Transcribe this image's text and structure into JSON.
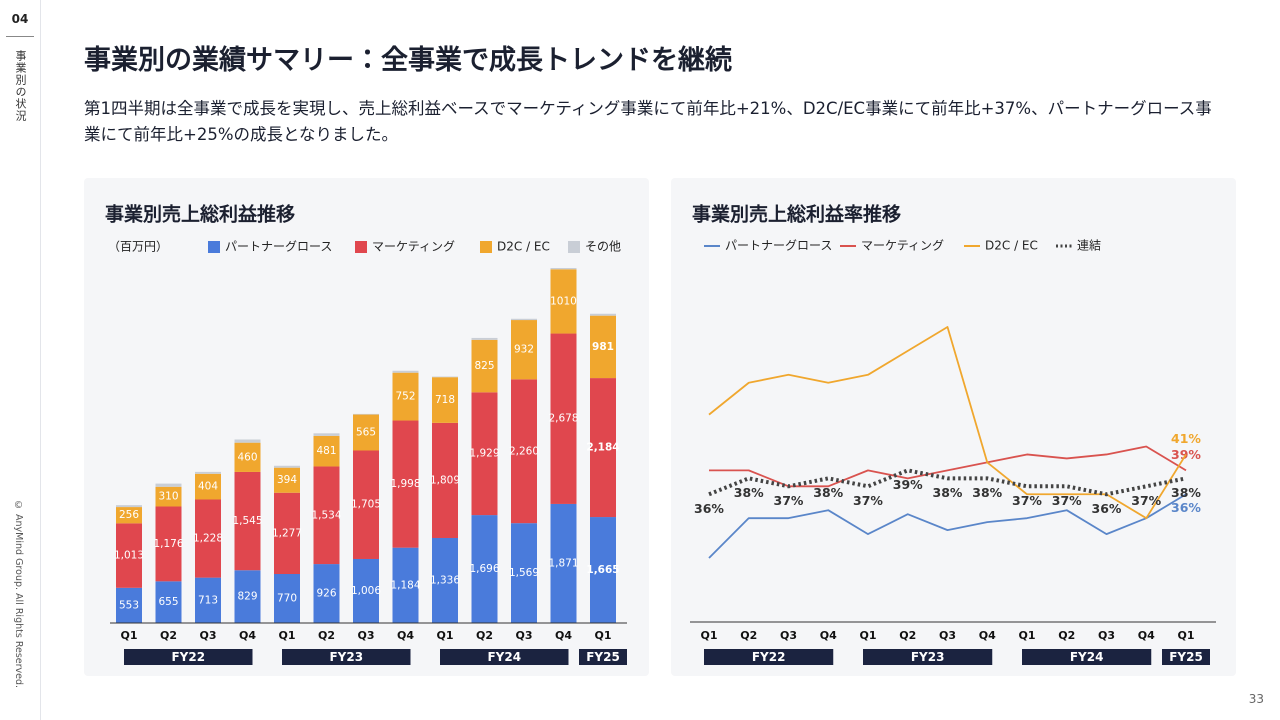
{
  "sidebar": {
    "section_number": "04",
    "section_title": "事業別の状況",
    "copyright": "© AnyMind Group. All Rights Reserved."
  },
  "header": {
    "title": "事業別の業績サマリー：全事業で成長トレンドを継続",
    "description": "第1四半期は全事業で成長を実現し、売上総利益ベースでマーケティング事業にて前年比+21%、D2C/EC事業にて前年比+37%、パートナーグロース事業にて前年比+25%の成長となりました。"
  },
  "page_number": 33,
  "chart_data": [
    {
      "type": "stacked_bar",
      "title": "事業別売上総利益推移",
      "unit_label": "（百万円）",
      "categories": [
        "Q1",
        "Q2",
        "Q3",
        "Q4",
        "Q1",
        "Q2",
        "Q3",
        "Q4",
        "Q1",
        "Q2",
        "Q3",
        "Q4",
        "Q1"
      ],
      "groups": [
        "FY22",
        "FY23",
        "FY24",
        "FY25"
      ],
      "series": [
        {
          "name": "パートナーグロース",
          "color": "#4a7bdb",
          "values": [
            553,
            655,
            713,
            829,
            770,
            926,
            1006,
            1184,
            1336,
            1696,
            1569,
            1871,
            1665
          ],
          "value_labels": [
            "553",
            "655",
            "713",
            "829",
            "770",
            "926",
            "1,006",
            "1,184",
            "1,336",
            "1,696",
            "1,569",
            "1,871",
            "1,665"
          ]
        },
        {
          "name": "マーケティング",
          "color": "#e0474e",
          "values": [
            1013,
            1176,
            1228,
            1545,
            1277,
            1534,
            1705,
            1998,
            1809,
            1929,
            2260,
            2678,
            2184
          ],
          "value_labels": [
            "1,013",
            "1,176",
            "1,228",
            "1,545",
            "1,277",
            "1,534",
            "1,705",
            "1,998",
            "1,809",
            "1,929",
            "2,260",
            "2,678",
            "2,184"
          ]
        },
        {
          "name": "D2C / EC",
          "color": "#f0a72e",
          "values": [
            256,
            310,
            404,
            460,
            394,
            481,
            565,
            752,
            718,
            825,
            932,
            1010,
            981
          ],
          "value_labels": [
            "256",
            "310",
            "404",
            "460",
            "394",
            "481",
            "565",
            "752",
            "718",
            "825",
            "932",
            "1010",
            "981"
          ]
        },
        {
          "name": "その他",
          "color": "#c9ced6",
          "values": [
            30,
            50,
            30,
            50,
            30,
            40,
            10,
            30,
            10,
            30,
            20,
            20,
            30
          ]
        }
      ]
    },
    {
      "type": "line",
      "title": "事業別売上総利益率推移",
      "categories": [
        "Q1",
        "Q2",
        "Q3",
        "Q4",
        "Q1",
        "Q2",
        "Q3",
        "Q4",
        "Q1",
        "Q2",
        "Q3",
        "Q4",
        "Q1"
      ],
      "groups": [
        "FY22",
        "FY23",
        "FY24",
        "FY25"
      ],
      "series": [
        {
          "name": "パートナーグロース",
          "color": "#5a86c9",
          "style": "solid",
          "values": [
            28,
            33,
            33,
            34,
            31,
            33.5,
            31.5,
            32.5,
            33,
            34,
            31,
            33,
            36
          ],
          "value_labels": [
            null,
            null,
            null,
            null,
            null,
            null,
            null,
            null,
            null,
            null,
            null,
            null,
            "36%"
          ]
        },
        {
          "name": "マーケティング",
          "color": "#d9534f",
          "style": "solid",
          "values": [
            39,
            39,
            37,
            37,
            39,
            38,
            39,
            40,
            41,
            40.5,
            41,
            42,
            39
          ],
          "value_labels": [
            null,
            null,
            null,
            null,
            null,
            null,
            null,
            null,
            null,
            null,
            null,
            null,
            "39%"
          ]
        },
        {
          "name": "D2C / EC",
          "color": "#f0a72e",
          "style": "solid",
          "values": [
            46,
            50,
            51,
            50,
            51,
            54,
            57,
            40,
            36,
            36,
            36,
            33,
            41
          ],
          "value_labels": [
            null,
            null,
            null,
            null,
            null,
            null,
            null,
            null,
            null,
            null,
            null,
            null,
            "41%"
          ]
        },
        {
          "name": "連結",
          "color": "#444444",
          "style": "dotted",
          "values": [
            36,
            38,
            37,
            38,
            37,
            39,
            38,
            38,
            37,
            37,
            36,
            37,
            38
          ],
          "value_labels": [
            "36%",
            "38%",
            "37%",
            "38%",
            "37%",
            "39%",
            "38%",
            "38%",
            "37%",
            "37%",
            "36%",
            "37%",
            "38%"
          ]
        }
      ]
    }
  ]
}
